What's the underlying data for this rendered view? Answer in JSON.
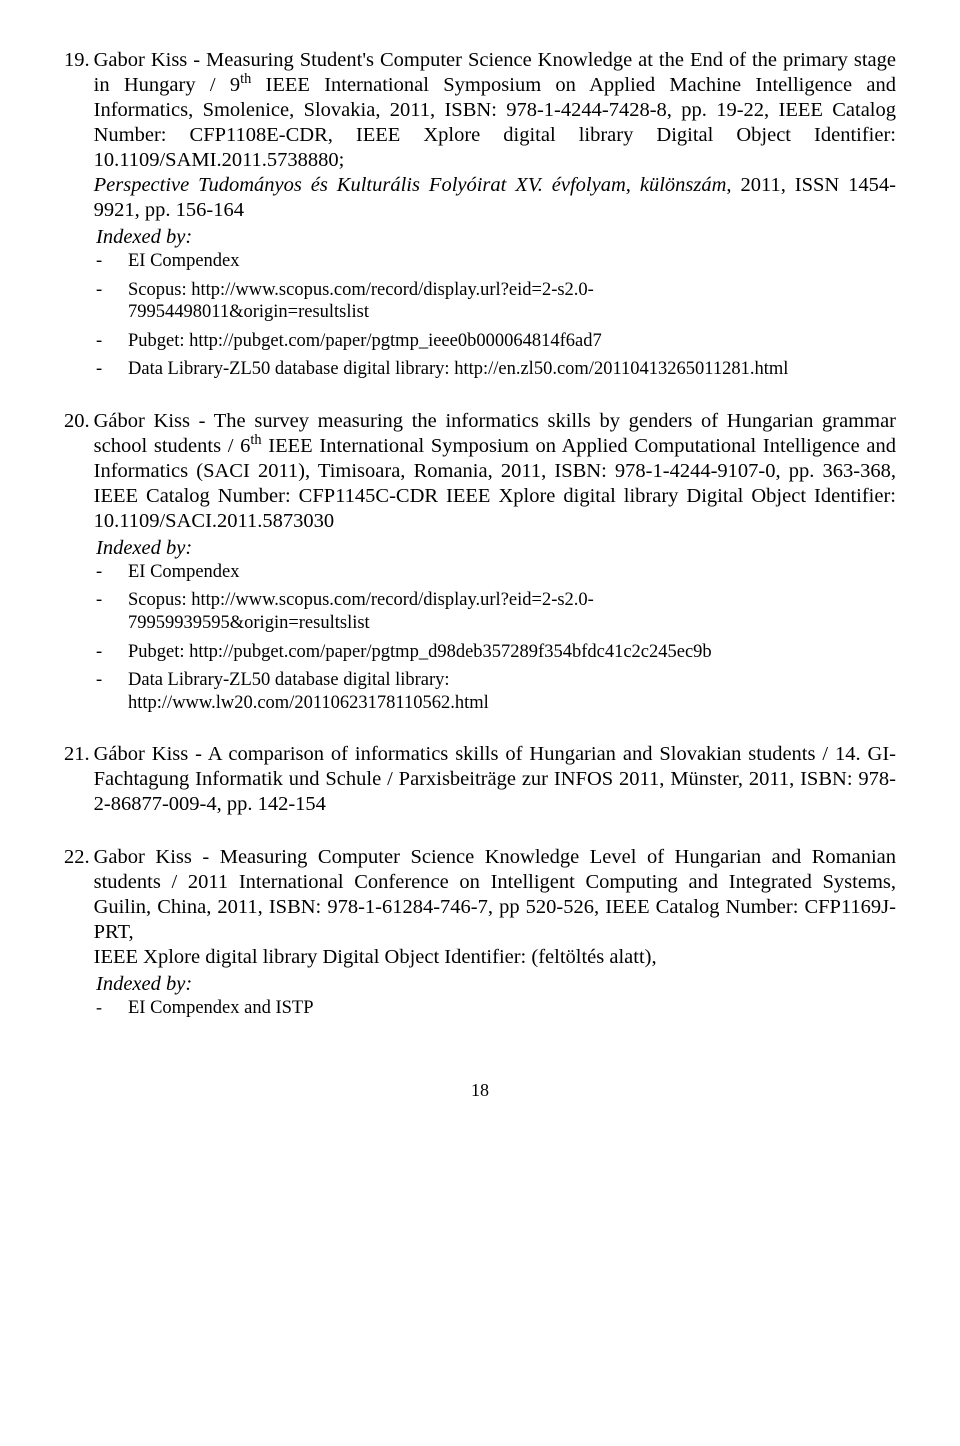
{
  "entries": [
    {
      "num": "19.",
      "pre": "Gabor Kiss - Measuring Student's Computer Science Knowledge at the End of the primary stage in Hungary / 9",
      "sup": "th",
      "post": " IEEE International Symposium on Applied Machine Intelligence and Informatics, Smolenice, Slovakia, 2011, ISBN: 978-1-4244-7428-8, pp. 19-22, IEEE Catalog Number: CFP1108E-CDR, IEEE Xplore digital library Digital Object Identifier: 10.1109/SAMI.2011.5738880;",
      "italic_tail": "Perspective Tudományos és Kulturális Folyóirat XV. évfolyam, különszám",
      "tail_after_italic": ", 2011, ISSN 1454-9921, pp. 156-164",
      "indexed": "Indexed by:",
      "items": [
        {
          "mark": "-",
          "line1": "EI Compendex"
        },
        {
          "mark": "-",
          "line1": "Scopus: http://www.scopus.com/record/display.url?eid=2-s2.0-",
          "line2": "79954498011&origin=resultslist"
        },
        {
          "mark": "-",
          "line1": "Pubget: http://pubget.com/paper/pgtmp_ieee0b000064814f6ad7"
        },
        {
          "mark": "-",
          "line1": "Data Library-ZL50 database digital library: http://en.zl50.com/20110413265011281.html"
        }
      ]
    },
    {
      "num": "20.",
      "pre": "Gábor Kiss - The survey measuring the informatics skills by genders of Hungarian grammar school students / 6",
      "sup": "th",
      "post": " IEEE International Symposium on Applied Computational Intelligence and Informatics (SACI 2011), Timisoara, Romania, 2011, ISBN: 978-1-4244-9107-0, pp. 363-368, IEEE Catalog Number: CFP1145C-CDR IEEE Xplore digital library Digital Object Identifier: 10.1109/SACI.2011.5873030",
      "indexed": "Indexed by:",
      "items": [
        {
          "mark": "-",
          "line1": "EI Compendex"
        },
        {
          "mark": "-",
          "line1": "Scopus: http://www.scopus.com/record/display.url?eid=2-s2.0-",
          "line2": "79959939595&origin=resultslist"
        },
        {
          "mark": "-",
          "line1": "Pubget: http://pubget.com/paper/pgtmp_d98deb357289f354bfdc41c2c245ec9b"
        },
        {
          "mark": "-",
          "line1": "Data Library-ZL50 database digital library:",
          "line2": "http://www.lw20.com/20110623178110562.html"
        }
      ]
    },
    {
      "num": "21.",
      "pre": "Gábor Kiss - A comparison of informatics skills of Hungarian and Slovakian students / 14. GI-Fachtagung Informatik und Schule / Parxisbeiträge zur INFOS 2011, Münster, 2011, ISBN: 978-2-86877-009-4, pp. 142-154"
    },
    {
      "num": "22.",
      "pre": "Gabor Kiss - Measuring Computer Science Knowledge Level of Hungarian and Romanian students / 2011 International Conference on Intelligent Computing and Integrated Systems, Guilin, China, 2011, ISBN: 978-1-61284-746-7, pp 520-526, IEEE Catalog Number: CFP1169J-PRT,",
      "extra_line": "IEEE Xplore digital library Digital Object Identifier: (feltöltés alatt),",
      "indexed": "Indexed by:",
      "items": [
        {
          "mark": "-",
          "line1": "EI Compendex and ISTP"
        }
      ]
    }
  ],
  "page_number": "18"
}
